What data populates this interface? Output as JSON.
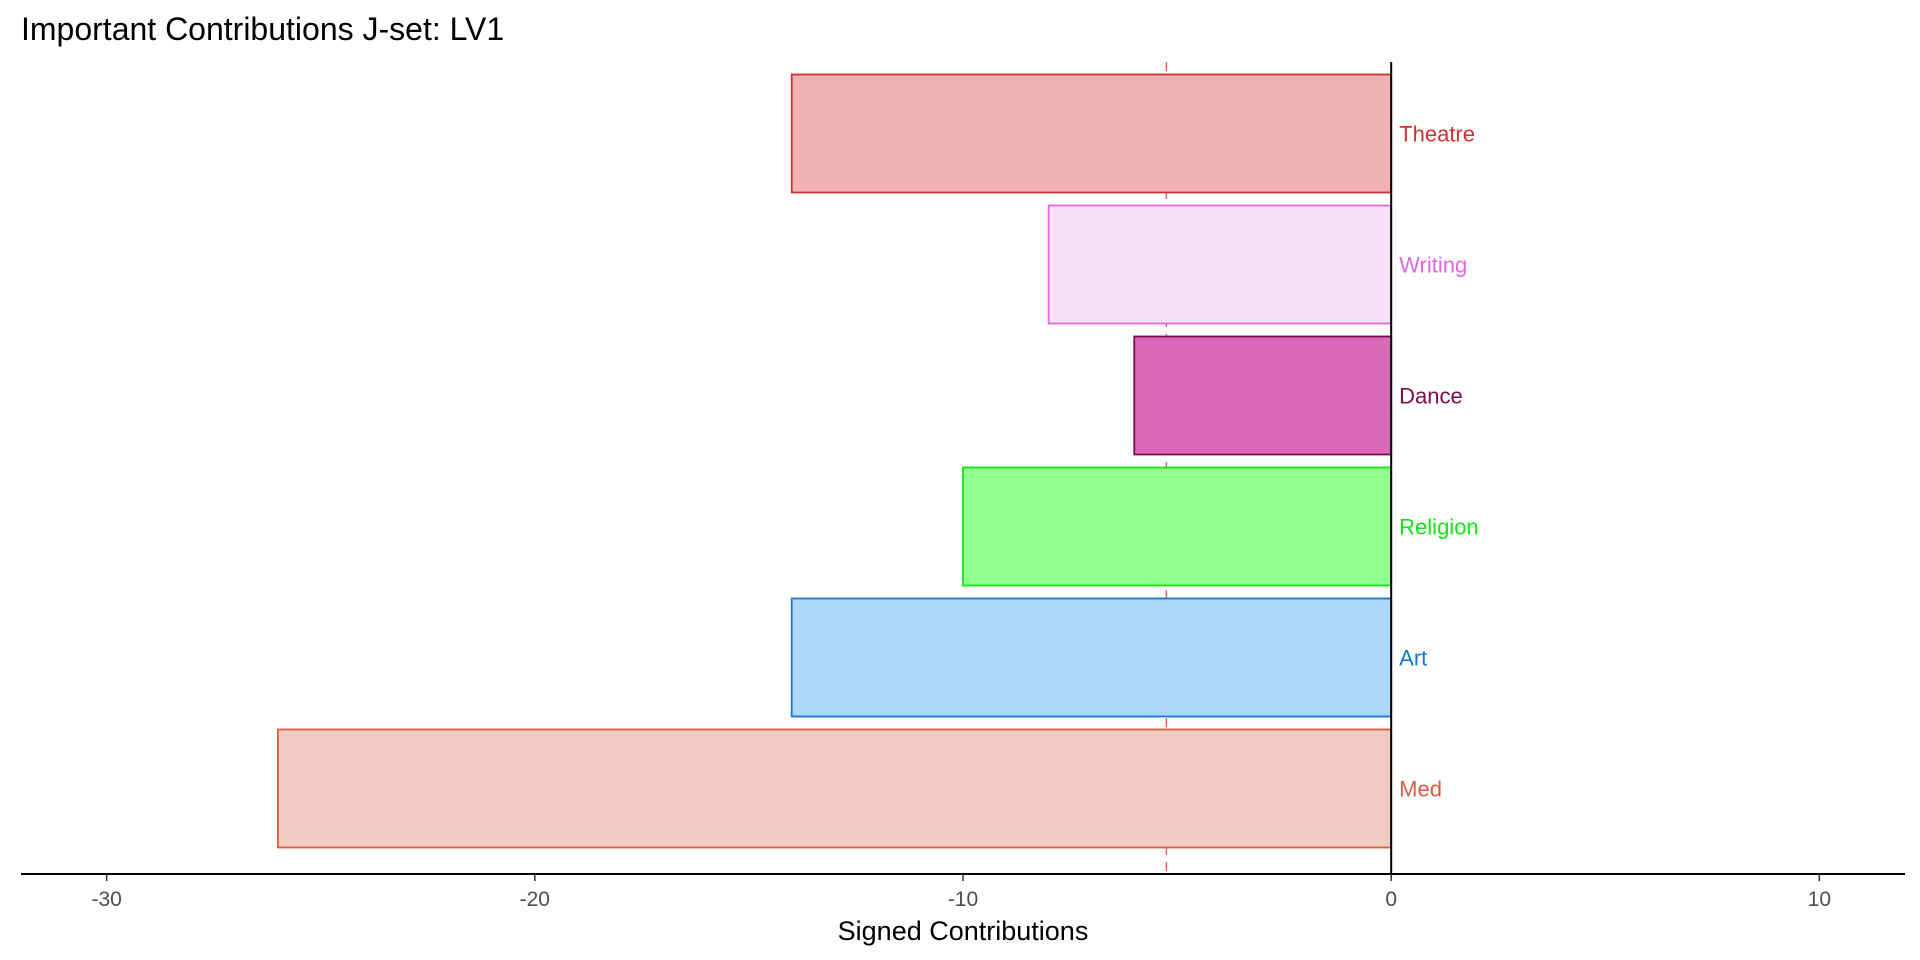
{
  "chart_data": {
    "type": "bar",
    "orientation": "horizontal",
    "title": "Important Contributions J-set: LV1",
    "xlabel": "Signed Contributions",
    "ylabel": "",
    "xlim": [
      -32,
      12
    ],
    "x_ticks": [
      -30,
      -20,
      -10,
      0,
      10
    ],
    "x_tick_labels": [
      "-30",
      "-20",
      "-10",
      "0",
      "10"
    ],
    "threshold_line": -5.25,
    "grid": false,
    "legend": "none",
    "categories": [
      "Theatre",
      "Writing",
      "Dance",
      "Religion",
      "Art",
      "Med"
    ],
    "values": [
      -14,
      -8,
      -6,
      -10,
      -14,
      -26
    ],
    "colors": {
      "Theatre": {
        "fill": "#f0b2b2",
        "stroke": "#d32f2f",
        "label": "#d32f2f"
      },
      "Writing": {
        "fill": "#f6e0f6",
        "stroke": "#de68de",
        "label": "#de68de"
      },
      "Dance": {
        "fill": "#da6ab9",
        "stroke": "#7a0c4c",
        "label": "#7a0c4c"
      },
      "Religion": {
        "fill": "#94ff8f",
        "stroke": "#12e312",
        "label": "#12e312"
      },
      "Art": {
        "fill": "#acd7f9",
        "stroke": "#1878d1",
        "label": "#1878d1"
      },
      "Med": {
        "fill": "#efcbc2",
        "stroke": "#d95d42",
        "label": "#d95d42"
      }
    },
    "threshold_color": "#e06060"
  }
}
